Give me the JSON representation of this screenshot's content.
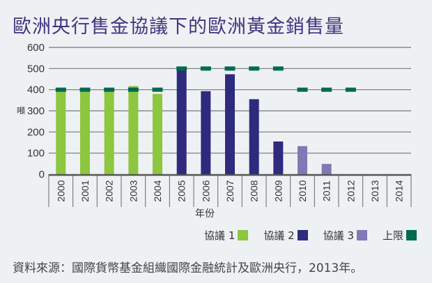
{
  "chart_data": {
    "type": "bar",
    "title": "歐洲央行售金協議下的歐洲黃金銷售量",
    "xlabel": "年份",
    "ylabel": "噸",
    "ylim": [
      0,
      600
    ],
    "yticks": [
      "0",
      "100",
      "200",
      "300",
      "400",
      "500",
      "600"
    ],
    "grid": true,
    "legend_position": "bottom-right",
    "categories": [
      "2000",
      "2001",
      "2002",
      "2003",
      "2004",
      "2005",
      "2006",
      "2007",
      "2008",
      "2009",
      "2010",
      "2011",
      "2012",
      "2013",
      "2014"
    ],
    "series": [
      {
        "name": "協議 1",
        "color": "#8dc63f",
        "values": [
          400,
          400,
          400,
          417,
          380,
          null,
          null,
          null,
          null,
          null,
          null,
          null,
          null,
          null,
          null
        ]
      },
      {
        "name": "協議 2",
        "color": "#2e2a7e",
        "values": [
          null,
          null,
          null,
          null,
          null,
          497,
          393,
          473,
          355,
          155,
          null,
          null,
          null,
          null,
          null
        ]
      },
      {
        "name": "協議 3",
        "color": "#8079b5",
        "values": [
          null,
          null,
          null,
          null,
          null,
          null,
          null,
          null,
          null,
          null,
          133,
          49,
          0,
          null,
          null
        ]
      },
      {
        "name": "上限",
        "color": "#006b4f",
        "marker": "dash",
        "values": [
          400,
          400,
          400,
          400,
          400,
          500,
          500,
          500,
          500,
          500,
          400,
          400,
          400,
          null,
          null
        ]
      }
    ]
  },
  "source": "資料來源：國際貨幣基金組織國際金融統計及歐洲央行，2013年。"
}
